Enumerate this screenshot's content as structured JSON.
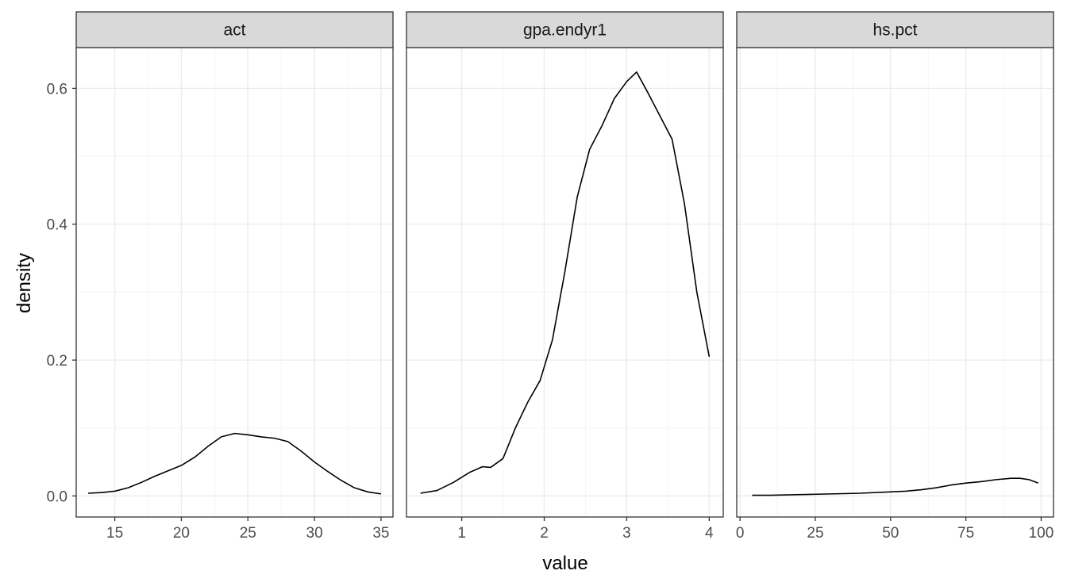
{
  "chart_data": {
    "type": "line",
    "facet_layout": "1x3",
    "xlabel": "value",
    "ylabel": "density",
    "y_shared": true,
    "ylim": [
      -0.031,
      0.66
    ],
    "yticks": [
      0.0,
      0.2,
      0.4,
      0.6
    ],
    "ytick_labels": [
      "0.0",
      "0.2",
      "0.4",
      "0.6"
    ],
    "grid": true,
    "panels": [
      {
        "strip": "act",
        "xlim": [
          12.1,
          35.9
        ],
        "xticks": [
          15,
          20,
          25,
          30,
          35
        ],
        "xtick_labels": [
          "15",
          "20",
          "25",
          "30",
          "35"
        ],
        "x": [
          13,
          14,
          15,
          16,
          17,
          18,
          19,
          20,
          21,
          22,
          23,
          24,
          25,
          26,
          27,
          28,
          29,
          30,
          31,
          32,
          33,
          34,
          35
        ],
        "y": [
          0.004,
          0.005,
          0.007,
          0.012,
          0.02,
          0.029,
          0.037,
          0.045,
          0.057,
          0.073,
          0.087,
          0.092,
          0.09,
          0.087,
          0.085,
          0.08,
          0.066,
          0.05,
          0.036,
          0.023,
          0.012,
          0.006,
          0.003
        ]
      },
      {
        "strip": "gpa.endyr1",
        "xlim": [
          0.33,
          4.17
        ],
        "xticks": [
          1,
          2,
          3,
          4
        ],
        "xtick_labels": [
          "1",
          "2",
          "3",
          "4"
        ],
        "x": [
          0.5,
          0.7,
          0.9,
          1.1,
          1.25,
          1.35,
          1.5,
          1.65,
          1.8,
          1.95,
          2.1,
          2.25,
          2.4,
          2.55,
          2.7,
          2.85,
          3.0,
          3.12,
          3.25,
          3.4,
          3.55,
          3.7,
          3.85,
          4.0
        ],
        "y": [
          0.004,
          0.008,
          0.02,
          0.035,
          0.043,
          0.042,
          0.055,
          0.1,
          0.138,
          0.17,
          0.23,
          0.33,
          0.44,
          0.51,
          0.545,
          0.585,
          0.61,
          0.624,
          0.595,
          0.56,
          0.525,
          0.43,
          0.3,
          0.205
        ]
      },
      {
        "strip": "hs.pct",
        "xlim": [
          -1.1,
          104.1
        ],
        "xticks": [
          0,
          25,
          50,
          75,
          100
        ],
        "xtick_labels": [
          "0",
          "25",
          "50",
          "75",
          "100"
        ],
        "x": [
          4,
          10,
          20,
          30,
          40,
          50,
          55,
          60,
          65,
          70,
          75,
          80,
          85,
          90,
          93,
          96,
          99
        ],
        "y": [
          0.001,
          0.001,
          0.002,
          0.003,
          0.004,
          0.006,
          0.007,
          0.009,
          0.012,
          0.016,
          0.019,
          0.021,
          0.024,
          0.026,
          0.026,
          0.024,
          0.019
        ]
      }
    ]
  }
}
